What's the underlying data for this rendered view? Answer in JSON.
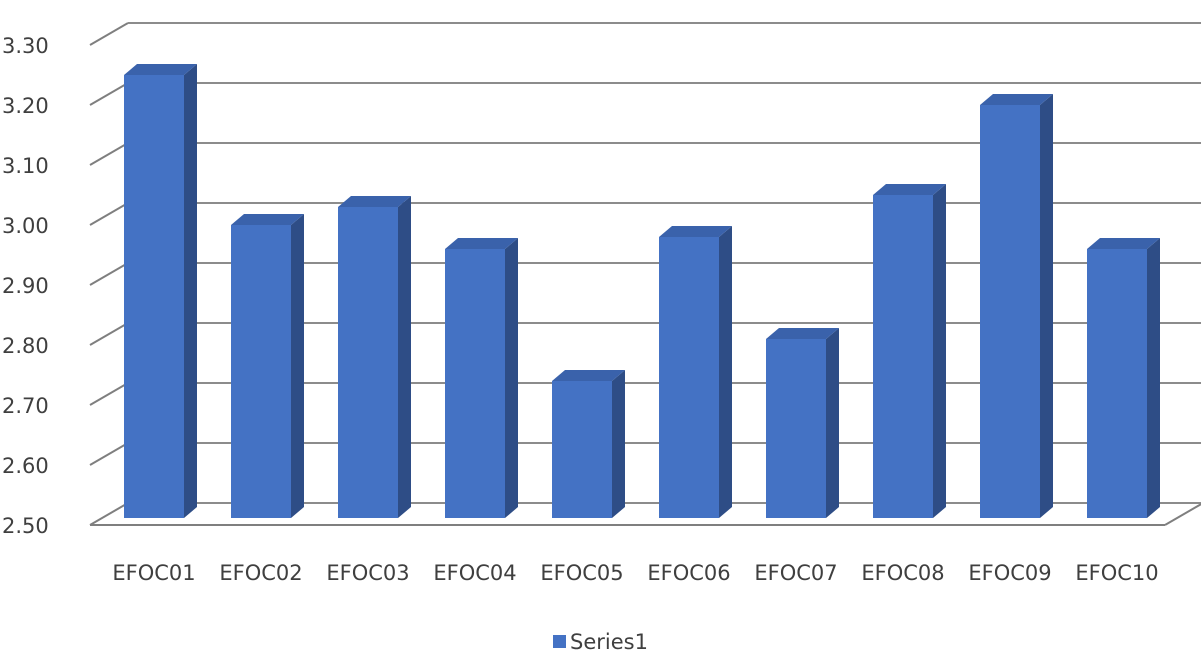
{
  "chart_data": {
    "type": "bar",
    "style": "3d-column",
    "categories": [
      "EFOC01",
      "EFOC02",
      "EFOC03",
      "EFOC04",
      "EFOC05",
      "EFOC06",
      "EFOC07",
      "EFOC08",
      "EFOC09",
      "EFOC10"
    ],
    "series": [
      {
        "name": "Series1",
        "values": [
          3.27,
          3.02,
          3.05,
          2.98,
          2.76,
          3.0,
          2.83,
          3.07,
          3.22,
          2.98
        ],
        "color": "#4472c4"
      }
    ],
    "ylim": [
      2.5,
      3.3
    ],
    "yticks": [
      "2.50",
      "2.60",
      "2.70",
      "2.80",
      "2.90",
      "3.00",
      "3.10",
      "3.20",
      "3.30"
    ],
    "title": "",
    "xlabel": "",
    "ylabel": "",
    "grid": true,
    "legend": "bottom-center"
  },
  "legend": {
    "label": "Series1",
    "swatch_color": "#4472c4"
  }
}
